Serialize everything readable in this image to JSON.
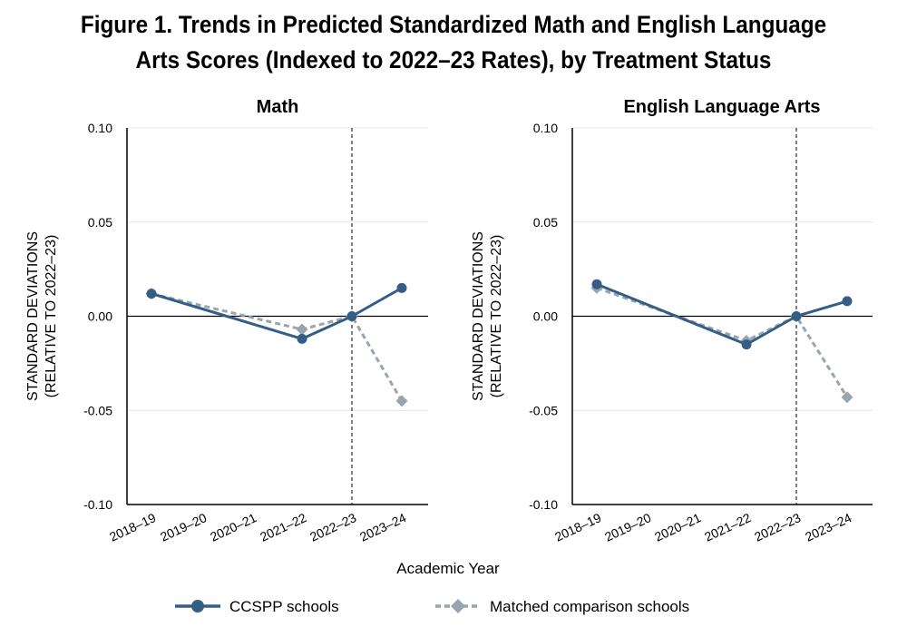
{
  "figure": {
    "title_line1": "Figure 1. Trends in Predicted Standardized Math and English Language",
    "title_line2": "Arts Scores (Indexed to 2022–23 Rates), by Treatment Status",
    "xlabel": "Academic Year"
  },
  "legend": {
    "items": [
      {
        "label": "CCSPP schools",
        "color": "#355e86",
        "marker": "circle",
        "style": "solid"
      },
      {
        "label": "Matched comparison schools",
        "color": "#9aa4ae",
        "marker": "diamond",
        "style": "dashed"
      }
    ]
  },
  "chart_data": [
    {
      "type": "line",
      "title": "Math",
      "ylabel_line1": "STANDARD DEVIATIONS",
      "ylabel_line2": "(RELATIVE TO 2022–23)",
      "categories": [
        "2018–19",
        "2019–20",
        "2020–21",
        "2021–22",
        "2022–23",
        "2023–24"
      ],
      "ylim": [
        -0.1,
        0.1
      ],
      "yticks": [
        "0.10",
        "0.05",
        "0.00",
        "-0.05",
        "-0.10"
      ],
      "reference_line_at": "2022–23",
      "series": [
        {
          "name": "CCSPP schools",
          "values": [
            0.012,
            null,
            null,
            -0.012,
            0.0,
            0.015
          ]
        },
        {
          "name": "Matched comparison schools",
          "values": [
            0.012,
            null,
            null,
            -0.007,
            0.0,
            -0.045
          ]
        }
      ]
    },
    {
      "type": "line",
      "title": "English Language Arts",
      "ylabel_line1": "STANDARD DEVIATIONS",
      "ylabel_line2": "(RELATIVE TO 2022–23)",
      "categories": [
        "2018–19",
        "2019–20",
        "2020–21",
        "2021–22",
        "2022–23",
        "2023–24"
      ],
      "ylim": [
        -0.1,
        0.1
      ],
      "yticks": [
        "0.10",
        "0.05",
        "0.00",
        "-0.05",
        "-0.10"
      ],
      "reference_line_at": "2022–23",
      "series": [
        {
          "name": "CCSPP schools",
          "values": [
            0.017,
            null,
            null,
            -0.015,
            0.0,
            0.008
          ]
        },
        {
          "name": "Matched comparison schools",
          "values": [
            0.015,
            null,
            null,
            -0.013,
            0.0,
            -0.043
          ]
        }
      ]
    }
  ]
}
